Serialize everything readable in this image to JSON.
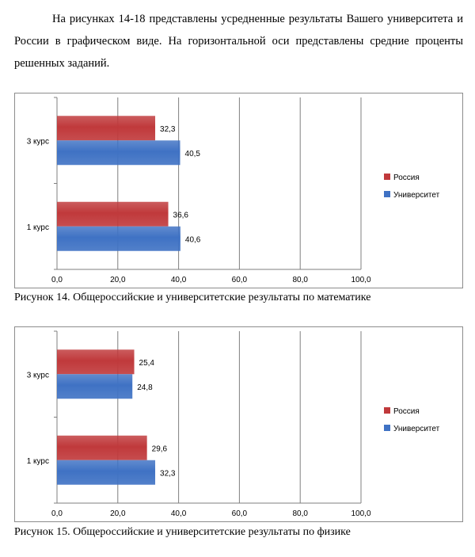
{
  "intro_text": "На рисунках 14-18 представлены усредненные результаты Вашего университета и России в графическом виде. На горизонтальной оси представлены средние проценты решенных заданий.",
  "colors": {
    "russia": "#c0393b",
    "university": "#3f72c4",
    "grid": "#7f7f7f"
  },
  "chart_data": [
    {
      "type": "bar",
      "orientation": "horizontal",
      "categories": [
        "3 курс",
        "1 курс"
      ],
      "series": [
        {
          "name": "Россия",
          "values": [
            32.3,
            36.6
          ]
        },
        {
          "name": "Университет",
          "values": [
            40.5,
            40.6
          ]
        }
      ],
      "value_labels": {
        "Россия": [
          "32,3",
          "36,6"
        ],
        "Университет": [
          "40,5",
          "40,6"
        ]
      },
      "xlim": [
        0,
        100
      ],
      "xticks": [
        "0,0",
        "20,0",
        "40,0",
        "60,0",
        "80,0",
        "100,0"
      ],
      "legend_position": "right",
      "grid": true,
      "caption": "Рисунок 14. Общероссийские и университетские результаты по математике"
    },
    {
      "type": "bar",
      "orientation": "horizontal",
      "categories": [
        "3 курс",
        "1 курс"
      ],
      "series": [
        {
          "name": "Россия",
          "values": [
            25.4,
            29.6
          ]
        },
        {
          "name": "Университет",
          "values": [
            24.8,
            32.3
          ]
        }
      ],
      "value_labels": {
        "Россия": [
          "25,4",
          "29,6"
        ],
        "Университет": [
          "24,8",
          "32,3"
        ]
      },
      "xlim": [
        0,
        100
      ],
      "xticks": [
        "0,0",
        "20,0",
        "40,0",
        "60,0",
        "80,0",
        "100,0"
      ],
      "legend_position": "right",
      "grid": true,
      "caption": "Рисунок 15. Общероссийские и университетские результаты по физике"
    }
  ]
}
